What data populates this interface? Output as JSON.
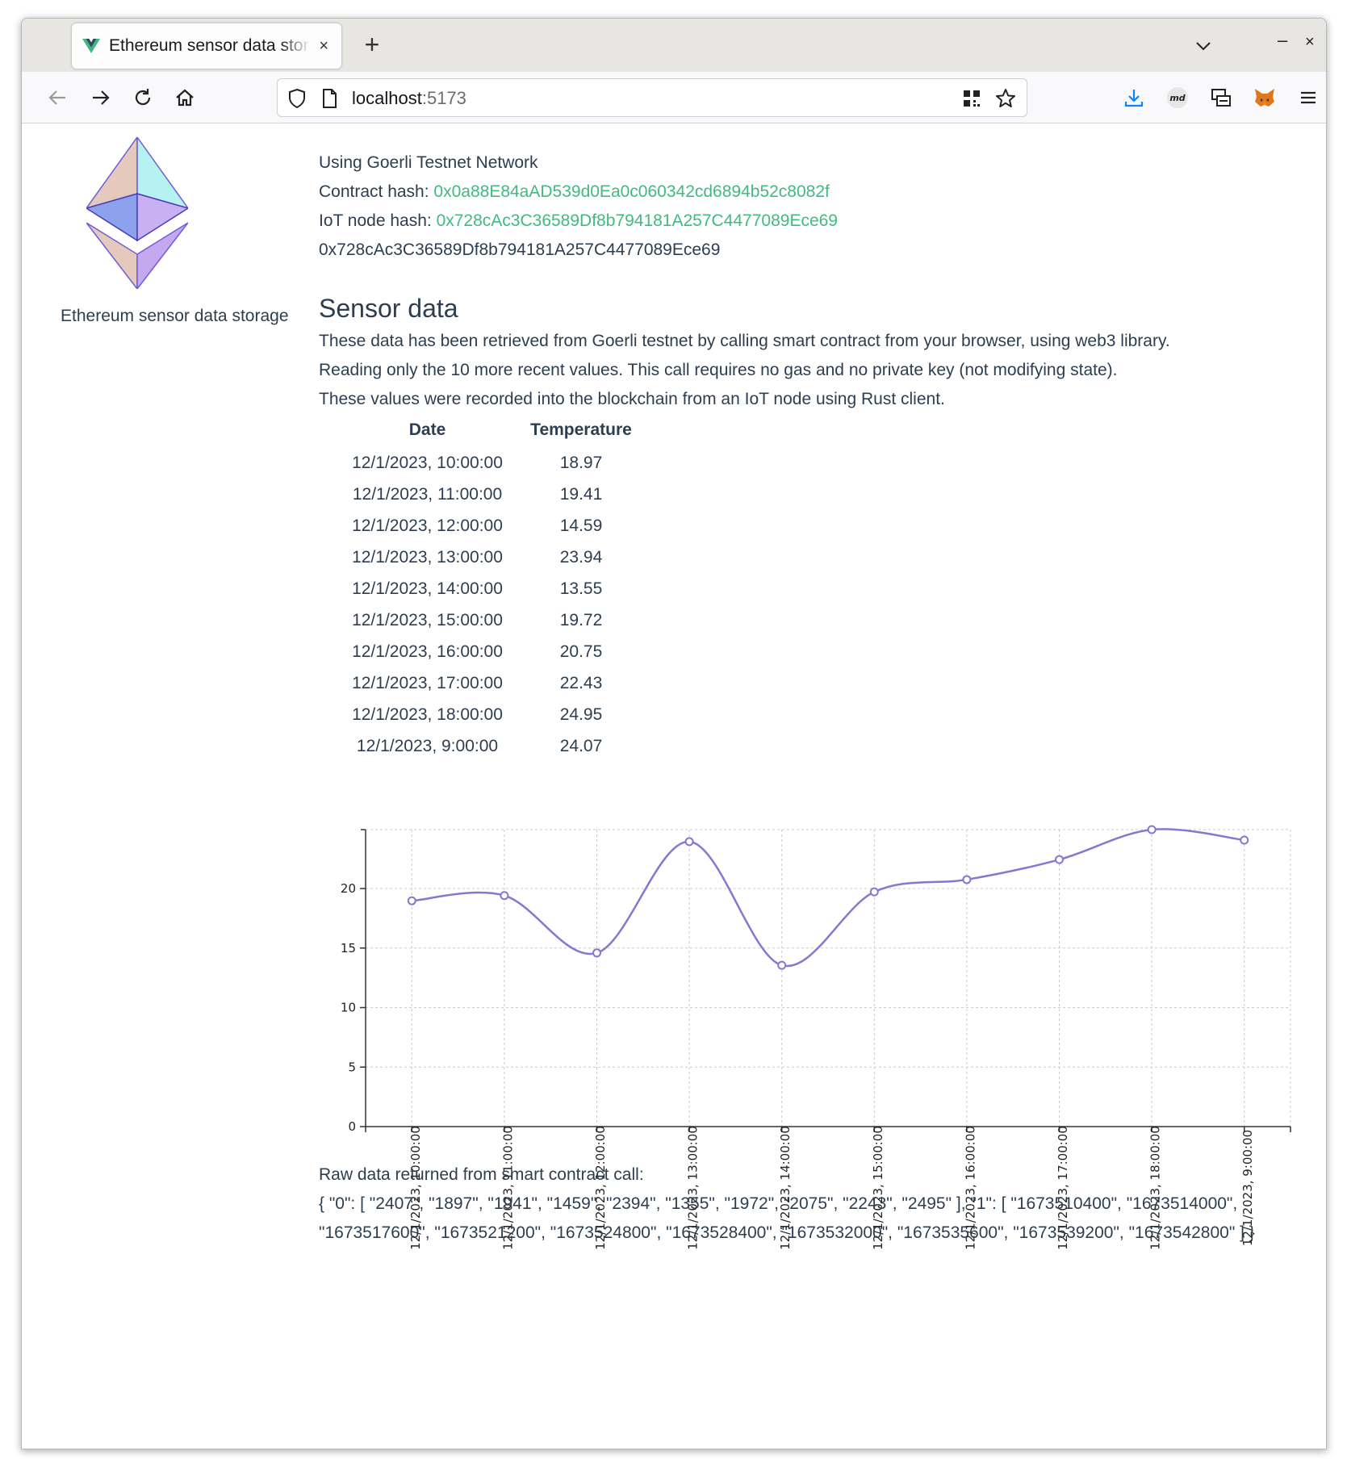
{
  "browser": {
    "tab_title": "Ethereum sensor data storage",
    "tab_close": "×",
    "new_tab": "+",
    "url_host": "localhost",
    "url_port": ":5173",
    "minimize": "–",
    "close": "×"
  },
  "sidebar": {
    "caption": "Ethereum sensor data storage"
  },
  "info": {
    "network": "Using Goerli Testnet Network",
    "contract_label": "Contract hash:",
    "contract_hash": "0x0a88E84aAD539d0Ea0c060342cd6894b52c8082f",
    "node_label": "IoT node hash:",
    "node_hash": "0x728cAc3C36589Df8b794181A257C4477089Ece69",
    "account": "0x728cAc3C36589Df8b794181A257C4477089Ece69"
  },
  "sensor": {
    "title": "Sensor data",
    "desc1": "These data has been retrieved from Goerli testnet by calling smart contract from your browser, using web3 library.",
    "desc2": "Reading only the 10 more recent values. This call requires no gas and no private key (not modifying state).",
    "desc3": "These values were recorded into the blockchain from an IoT node using Rust client."
  },
  "table": {
    "headers": [
      "Date",
      "Temperature"
    ],
    "rows": [
      [
        "12/1/2023, 10:00:00",
        "18.97"
      ],
      [
        "12/1/2023, 11:00:00",
        "19.41"
      ],
      [
        "12/1/2023, 12:00:00",
        "14.59"
      ],
      [
        "12/1/2023, 13:00:00",
        "23.94"
      ],
      [
        "12/1/2023, 14:00:00",
        "13.55"
      ],
      [
        "12/1/2023, 15:00:00",
        "19.72"
      ],
      [
        "12/1/2023, 16:00:00",
        "20.75"
      ],
      [
        "12/1/2023, 17:00:00",
        "22.43"
      ],
      [
        "12/1/2023, 18:00:00",
        "24.95"
      ],
      [
        "12/1/2023, 9:00:00",
        "24.07"
      ]
    ]
  },
  "chart_data": {
    "type": "line",
    "x": [
      "12/1/2023, 10:00:00",
      "12/1/2023, 11:00:00",
      "12/1/2023, 12:00:00",
      "12/1/2023, 13:00:00",
      "12/1/2023, 14:00:00",
      "12/1/2023, 15:00:00",
      "12/1/2023, 16:00:00",
      "12/1/2023, 17:00:00",
      "12/1/2023, 18:00:00",
      "12/1/2023, 9:00:00"
    ],
    "series": [
      {
        "values": [
          18.97,
          19.41,
          14.59,
          23.94,
          13.55,
          19.72,
          20.75,
          22.43,
          24.95,
          24.07
        ]
      }
    ],
    "yticks": [
      0,
      5,
      10,
      15,
      20
    ],
    "ylim": [
      0,
      24.95
    ],
    "grid": true,
    "line_color": "#8479d1"
  },
  "raw": {
    "label": "Raw data returned from smart contract call:",
    "value": "{ \"0\": [ \"2407\", \"1897\", \"1941\", \"1459\", \"2394\", \"1355\", \"1972\", \"2075\", \"2243\", \"2495\" ], \"1\": [ \"1673510400\", \"1673514000\", \"1673517600\", \"1673521200\", \"1673524800\", \"1673528400\", \"1673532000\", \"1673535600\", \"1673539200\", \"1673542800\" ] }"
  }
}
